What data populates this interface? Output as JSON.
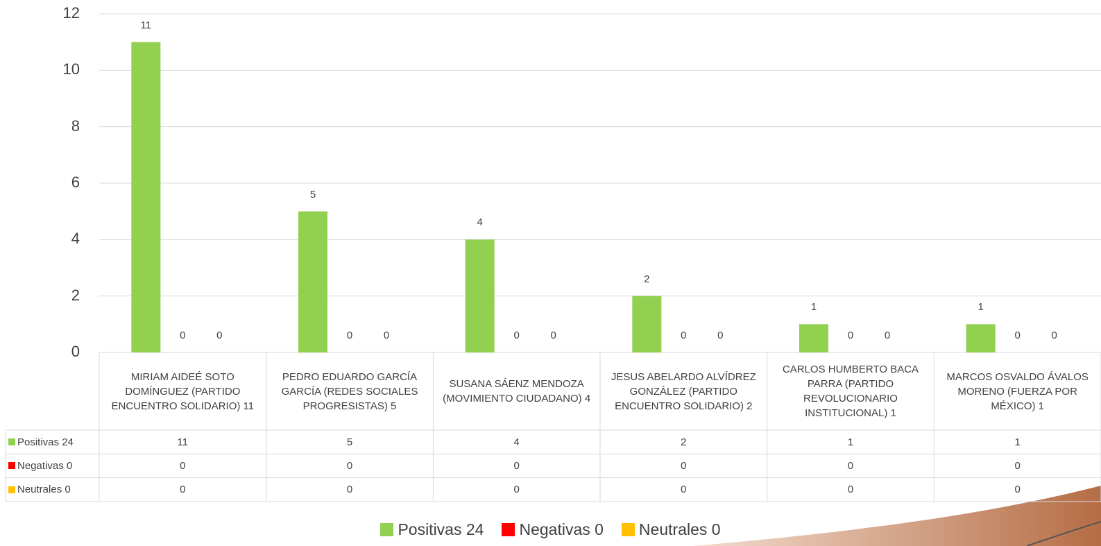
{
  "chart_data": {
    "type": "bar",
    "categories": [
      "MIRIAM AIDEÉ SOTO DOMÍNGUEZ (PARTIDO ENCUENTRO SOLIDARIO) 11",
      "PEDRO EDUARDO GARCÍA GARCÍA (REDES SOCIALES PROGRESISTAS) 5",
      "SUSANA SÁENZ MENDOZA (MOVIMIENTO CIUDADANO) 4",
      "JESUS ABELARDO ALVÍDREZ GONZÁLEZ (PARTIDO ENCUENTRO SOLIDARIO) 2",
      "CARLOS HUMBERTO BACA PARRA (PARTIDO REVOLUCIONARIO INSTITUCIONAL) 1",
      "MARCOS OSVALDO ÁVALOS MORENO (FUERZA POR MÉXICO) 1"
    ],
    "series": [
      {
        "name": "Positivas 24",
        "color": "#92d050",
        "values": [
          11,
          5,
          4,
          2,
          1,
          1
        ]
      },
      {
        "name": "Negativas 0",
        "color": "#ff0000",
        "values": [
          0,
          0,
          0,
          0,
          0,
          0
        ]
      },
      {
        "name": "Neutrales 0",
        "color": "#ffc000",
        "values": [
          0,
          0,
          0,
          0,
          0,
          0
        ]
      }
    ],
    "ylim": [
      0,
      12
    ],
    "yticks": [
      0,
      2,
      4,
      6,
      8,
      10,
      12
    ],
    "grid": true
  }
}
